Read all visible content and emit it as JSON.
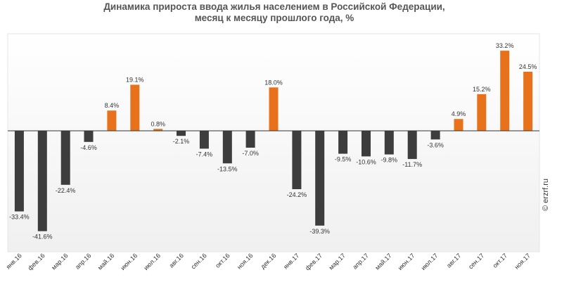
{
  "title_line1": "Динамика прироста ввода жилья населением в Российской Федерации,",
  "title_line2": "месяц к месяцу прошлого года, %",
  "watermark": "© erzrf.ru",
  "colors": {
    "positive": "#e8721c",
    "negative": "#3d3d3d",
    "axis": "#333333"
  },
  "chart_data": {
    "type": "bar",
    "categories": [
      "янв.16",
      "фев.16",
      "мар.16",
      "апр.16",
      "май.16",
      "июн.16",
      "июл.16",
      "авг.16",
      "сен.16",
      "окт.16",
      "ноя.16",
      "дек.16",
      "янв.17",
      "фев.17",
      "мар.17",
      "апр.17",
      "май.17",
      "июн.17",
      "июл.17",
      "авг.17",
      "сен.17",
      "окт.17",
      "ноя.17"
    ],
    "values": [
      -33.4,
      -41.6,
      -22.4,
      -4.6,
      8.4,
      19.1,
      0.8,
      -2.1,
      -7.4,
      -13.5,
      -7.0,
      18.0,
      -24.2,
      -39.3,
      -9.5,
      -10.6,
      -9.8,
      -11.7,
      -3.6,
      4.9,
      15.2,
      33.2,
      24.5
    ],
    "labels": [
      "-33.4%",
      "-41.6%",
      "-22.4%",
      "-4.6%",
      "8.4%",
      "19.1%",
      "0.8%",
      "-2.1%",
      "-7.4%",
      "-13.5%",
      "-7.0%",
      "18.0%",
      "-24.2%",
      "-39.3%",
      "-9.5%",
      "-10.6%",
      "-9.8%",
      "-11.7%",
      "-3.6%",
      "4.9%",
      "15.2%",
      "33.2%",
      "24.5%"
    ],
    "ylim": [
      -50,
      40
    ],
    "grid": false
  }
}
